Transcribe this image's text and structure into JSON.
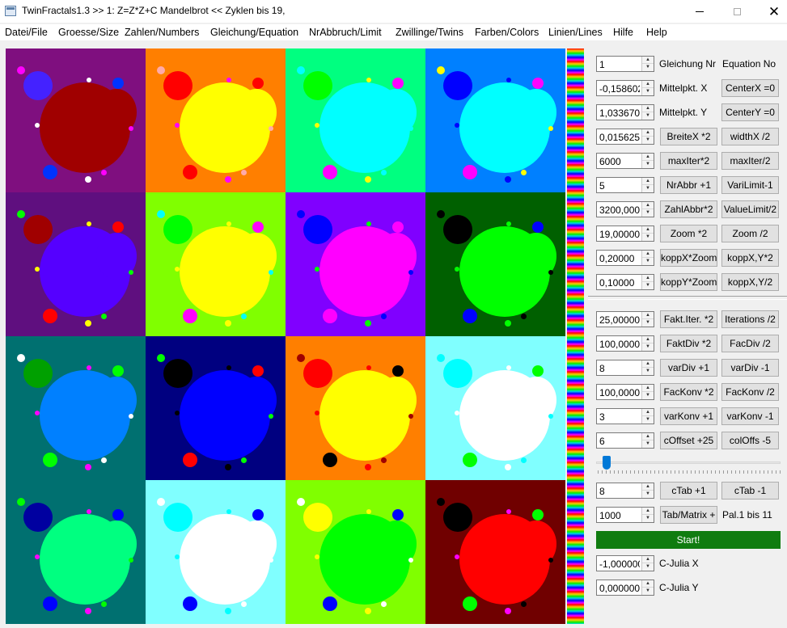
{
  "window": {
    "title": "TwinFractals1.3 >> 1: Z=Z*Z+C Mandelbrot << Zyklen bis 19,"
  },
  "menu": [
    "Datei/File",
    "Groesse/Size",
    "Zahlen/Numbers",
    "Gleichung/Equation",
    "NrAbbruch/Limit",
    "Zwillinge/Twins",
    "Farben/Colors",
    "Linien/Lines",
    "Hilfe",
    "Help"
  ],
  "tiles": [
    {
      "bg": "#7f0f7f",
      "fg": "#a00000",
      "bulb": "#4422ff",
      "dots": [
        "#0033ff",
        "#ffffff",
        "#ff00ff"
      ]
    },
    {
      "bg": "#ff7f00",
      "fg": "#ffff00",
      "bulb": "#ff0000",
      "dots": [
        "#ff0000",
        "#ff00ff",
        "#ffaaaa"
      ]
    },
    {
      "bg": "#00ff80",
      "fg": "#00ffff",
      "bulb": "#00ff00",
      "dots": [
        "#ff00ff",
        "#ffff00",
        "#00ffff"
      ]
    },
    {
      "bg": "#0080ff",
      "fg": "#00ffff",
      "bulb": "#0000ff",
      "dots": [
        "#ff00ff",
        "#0000ff",
        "#ffff00"
      ]
    },
    {
      "bg": "#5f0f7f",
      "fg": "#5500ff",
      "bulb": "#a00000",
      "dots": [
        "#ff0000",
        "#ffff00",
        "#00ff00"
      ]
    },
    {
      "bg": "#80ff00",
      "fg": "#ffff00",
      "bulb": "#00ff00",
      "dots": [
        "#ff00ff",
        "#ffff00",
        "#00ffff"
      ]
    },
    {
      "bg": "#8000ff",
      "fg": "#ff00ff",
      "bulb": "#0000ff",
      "dots": [
        "#ff00ff",
        "#00ff00",
        "#0000ff"
      ]
    },
    {
      "bg": "#006000",
      "fg": "#00ff00",
      "bulb": "#000000",
      "dots": [
        "#0000ff",
        "#00ff00",
        "#000000"
      ]
    },
    {
      "bg": "#007070",
      "fg": "#0080ff",
      "bulb": "#00a000",
      "dots": [
        "#00ff00",
        "#ff00ff",
        "#ffffff"
      ]
    },
    {
      "bg": "#000080",
      "fg": "#0000ff",
      "bulb": "#000000",
      "dots": [
        "#ff0000",
        "#000000",
        "#00ff00"
      ]
    },
    {
      "bg": "#ff7f00",
      "fg": "#ffff00",
      "bulb": "#ff0000",
      "dots": [
        "#000000",
        "#ff0000",
        "#a00000"
      ]
    },
    {
      "bg": "#80ffff",
      "fg": "#ffffff",
      "bulb": "#00ffff",
      "dots": [
        "#00ff00",
        "#ffffff",
        "#00ffff"
      ]
    },
    {
      "bg": "#007070",
      "fg": "#00ff80",
      "bulb": "#0000a0",
      "dots": [
        "#0000ff",
        "#ff00ff",
        "#00ff00"
      ]
    },
    {
      "bg": "#80ffff",
      "fg": "#ffffff",
      "bulb": "#00ffff",
      "dots": [
        "#0000ff",
        "#00ffff",
        "#ffffff"
      ]
    },
    {
      "bg": "#80ff00",
      "fg": "#00ff00",
      "bulb": "#ffff00",
      "dots": [
        "#0000ff",
        "#ffff00",
        "#ffffff"
      ]
    },
    {
      "bg": "#700000",
      "fg": "#ff0000",
      "bulb": "#000000",
      "dots": [
        "#00ff00",
        "#ff00ff",
        "#000000"
      ]
    }
  ],
  "rows": [
    {
      "value": "1",
      "btn1": "",
      "btn2": "",
      "label1": "Gleichung Nr",
      "label2": "Equation No"
    },
    {
      "value": "-0,1586020",
      "btn1": "",
      "btn2": "CenterX =0",
      "label1": "Mittelpkt. X",
      "label2": ""
    },
    {
      "value": "1,0336700",
      "btn1": "",
      "btn2": "CenterY =0",
      "label1": "Mittelpkt. Y",
      "label2": ""
    },
    {
      "value": "0,0156250",
      "btn1": "BreiteX *2",
      "btn2": "widthX /2",
      "label1": "",
      "label2": ""
    },
    {
      "value": "6000",
      "btn1": "maxIter*2",
      "btn2": "maxIter/2",
      "label1": "",
      "label2": ""
    },
    {
      "value": "5",
      "btn1": "NrAbbr +1",
      "btn2": "VariLimit-1",
      "label1": "",
      "label2": ""
    },
    {
      "value": "3200,0000",
      "btn1": "ZahlAbbr*2",
      "btn2": "ValueLimit/2",
      "label1": "",
      "label2": ""
    },
    {
      "value": "19,000000",
      "btn1": "Zoom *2",
      "btn2": "Zoom /2",
      "label1": "",
      "label2": ""
    },
    {
      "value": "0,20000",
      "btn1": "koppX*Zoom",
      "btn2": "koppX,Y*2",
      "label1": "",
      "label2": ""
    },
    {
      "value": "0,10000",
      "btn1": "koppY*Zoom",
      "btn2": "koppX,Y/2",
      "label1": "",
      "label2": ""
    },
    {
      "value": "25,00000",
      "btn1": "Fakt.Iter. *2",
      "btn2": "Iterations /2",
      "label1": "",
      "label2": ""
    },
    {
      "value": "100,00000",
      "btn1": "FaktDiv *2",
      "btn2": "FacDiv /2",
      "label1": "",
      "label2": ""
    },
    {
      "value": "8",
      "btn1": "varDiv +1",
      "btn2": "varDiv -1",
      "label1": "",
      "label2": ""
    },
    {
      "value": "100,00000",
      "btn1": "FacKonv *2",
      "btn2": "FacKonv /2",
      "label1": "",
      "label2": ""
    },
    {
      "value": "3",
      "btn1": "varKonv +1",
      "btn2": "varKonv -1",
      "label1": "",
      "label2": ""
    },
    {
      "value": "6",
      "btn1": "cOffset +25",
      "btn2": "colOffs -5",
      "label1": "",
      "label2": ""
    },
    {
      "value": "8",
      "btn1": "cTab +1",
      "btn2": "cTab -1",
      "label1": "",
      "label2": ""
    },
    {
      "value": "1000",
      "btn1": "Tab/Matrix +",
      "btn2": "",
      "label1": "",
      "label2": "Pal.1 bis 11"
    },
    {
      "value": "-1,0000000",
      "btn1": "",
      "btn2": "",
      "label1": "C-Julia X",
      "label2": ""
    },
    {
      "value": "0,0000000",
      "btn1": "",
      "btn2": "",
      "label1": "C-Julia Y",
      "label2": ""
    }
  ],
  "start_label": "Start!",
  "slider": {
    "value": 0.02
  },
  "icons": {
    "app": "app-window-icon",
    "minimize": "minimize-icon",
    "maximize": "maximize-icon",
    "close": "close-icon"
  }
}
